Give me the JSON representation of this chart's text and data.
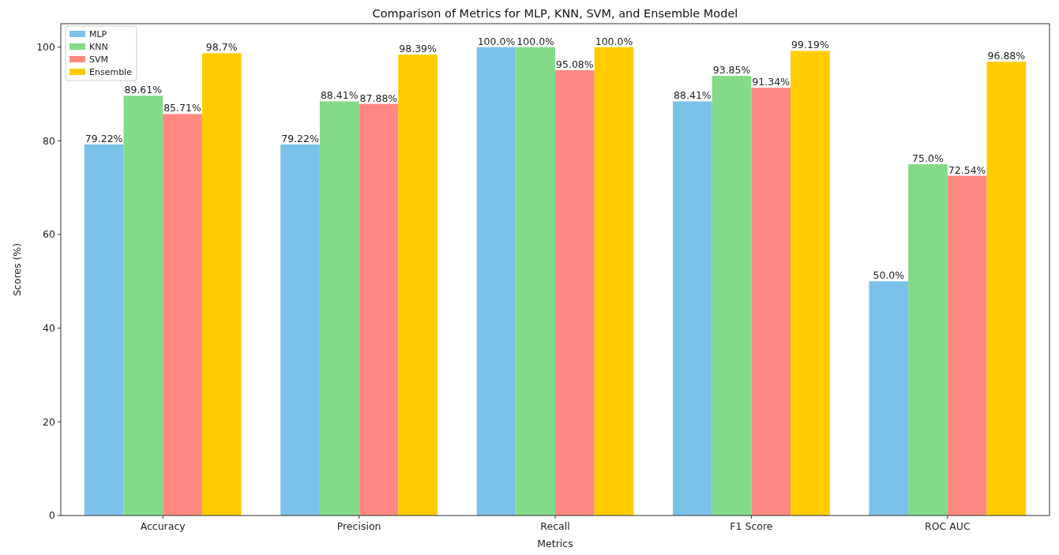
{
  "chart_data": {
    "type": "bar",
    "title": "Comparison of Metrics for MLP, KNN, SVM, and Ensemble Model",
    "xlabel": "Metrics",
    "ylabel": "Scores (%)",
    "categories": [
      "Accuracy",
      "Precision",
      "Recall",
      "F1 Score",
      "ROC AUC"
    ],
    "series": [
      {
        "name": "MLP",
        "color": "#7bc2ea",
        "values": [
          79.22,
          79.22,
          100.0,
          88.41,
          50.0
        ],
        "value_labels": [
          "79.22%",
          "79.22%",
          "100.0%",
          "88.41%",
          "50.0%"
        ]
      },
      {
        "name": "KNN",
        "color": "#82db87",
        "values": [
          89.61,
          88.41,
          100.0,
          93.85,
          75.0
        ],
        "value_labels": [
          "89.61%",
          "88.41%",
          "100.0%",
          "93.85%",
          "75.0%"
        ]
      },
      {
        "name": "SVM",
        "color": "#ff8882",
        "values": [
          85.71,
          87.88,
          95.08,
          91.34,
          72.54
        ],
        "value_labels": [
          "85.71%",
          "87.88%",
          "95.08%",
          "91.34%",
          "72.54%"
        ]
      },
      {
        "name": "Ensemble",
        "color": "#ffcc00",
        "values": [
          98.7,
          98.39,
          100.0,
          99.19,
          96.88
        ],
        "value_labels": [
          "98.7%",
          "98.39%",
          "100.0%",
          "99.19%",
          "96.88%"
        ]
      }
    ],
    "ylim": [
      0,
      105
    ],
    "yticks": [
      0,
      20,
      40,
      60,
      80,
      100
    ],
    "legend": "top left"
  }
}
